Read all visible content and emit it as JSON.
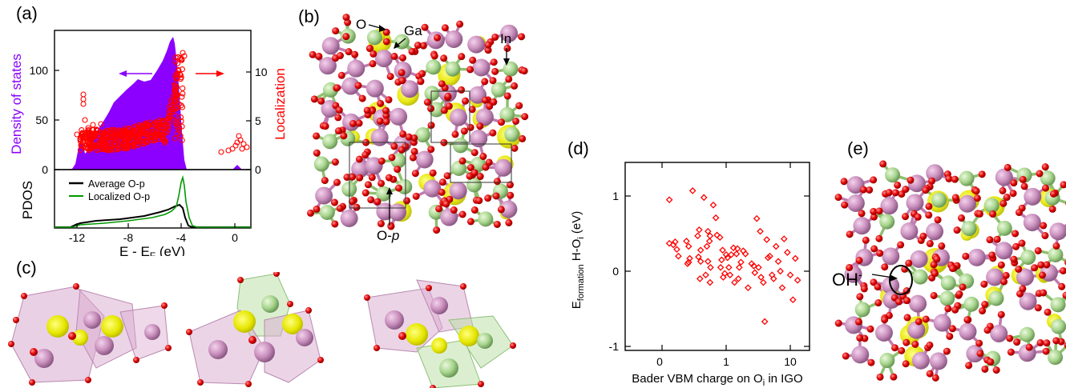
{
  "panel_labels": {
    "a": "(a)",
    "b": "(b)",
    "c": "(c)",
    "d": "(d)",
    "e": "(e)"
  },
  "panel_a": {
    "dos_ylabel": "Density of states",
    "loc_ylabel": "Localization",
    "pdos_ylabel": "PDOS",
    "xlabel_main": "E - E",
    "xlabel_sub": "F",
    "xlabel_unit": " (eV)",
    "xticks": [
      "-12",
      "-8",
      "-4",
      "0"
    ],
    "dos_yticks": [
      "0",
      "50",
      "100"
    ],
    "loc_yticks": [
      "0",
      "5",
      "10"
    ],
    "legend": [
      "Average O-p",
      "Localized O-p"
    ],
    "colors": {
      "dos": "#8b00ff",
      "loc": "#ff0000",
      "avg": "#000000",
      "loc_op": "#009900"
    }
  },
  "panel_b": {
    "labels": {
      "o": "O",
      "ga": "Ga",
      "in": "In",
      "op": "O-p"
    }
  },
  "panel_e": {
    "label": "OH",
    "label_sup": "-"
  },
  "chart_data": {
    "type": "scatter",
    "title": "",
    "xlabel": "Bader VBM charge on O",
    "xlabel_sub": "i",
    "xlabel_tail": " in IGO",
    "ylabel": "E",
    "ylabel_sub": "formation",
    "ylabel_tail": " H-O",
    "ylabel_tail_sub": "i",
    "ylabel_unit": " (eV)",
    "xscale": "log",
    "xticks": [
      "0",
      "1",
      "10"
    ],
    "yticks": [
      "-1",
      "0",
      "1"
    ],
    "ylim": [
      -1,
      1.5
    ],
    "color": "#ff0000",
    "points": [
      [
        0.13,
        0.95
      ],
      [
        0.13,
        0.37
      ],
      [
        0.15,
        0.35
      ],
      [
        0.16,
        0.39
      ],
      [
        0.17,
        0.29
      ],
      [
        0.18,
        0.2
      ],
      [
        0.24,
        0.4
      ],
      [
        0.26,
        0.33
      ],
      [
        0.3,
        1.07
      ],
      [
        0.27,
        0.17
      ],
      [
        0.25,
        0.1
      ],
      [
        0.26,
        0.12
      ],
      [
        0.36,
        0.47
      ],
      [
        0.38,
        0.55
      ],
      [
        0.4,
        0.28
      ],
      [
        0.37,
        0.19
      ],
      [
        0.4,
        0.13
      ],
      [
        0.39,
        -0.1
      ],
      [
        0.45,
        0.98
      ],
      [
        0.52,
        0.53
      ],
      [
        0.56,
        0.47
      ],
      [
        0.55,
        0.4
      ],
      [
        0.5,
        0.33
      ],
      [
        0.52,
        0.13
      ],
      [
        0.57,
        0.05
      ],
      [
        0.48,
        -0.05
      ],
      [
        0.56,
        -0.15
      ],
      [
        0.63,
        0.88
      ],
      [
        0.69,
        0.71
      ],
      [
        0.72,
        0.48
      ],
      [
        0.8,
        0.45
      ],
      [
        0.88,
        0.28
      ],
      [
        0.85,
        0.15
      ],
      [
        0.82,
        0.05
      ],
      [
        0.95,
        -0.03
      ],
      [
        0.9,
        -0.08
      ],
      [
        1.0,
        0.22
      ],
      [
        1.05,
        0.18
      ],
      [
        1.1,
        0.05
      ],
      [
        1.15,
        -0.05
      ],
      [
        1.2,
        0.22
      ],
      [
        1.3,
        0.31
      ],
      [
        1.35,
        -0.15
      ],
      [
        1.45,
        0.23
      ],
      [
        1.5,
        0.3
      ],
      [
        1.6,
        0.05
      ],
      [
        1.55,
        -0.1
      ],
      [
        1.85,
        0.27
      ],
      [
        2.0,
        0.23
      ],
      [
        2.2,
        -0.22
      ],
      [
        2.5,
        0.1
      ],
      [
        2.7,
        0.07
      ],
      [
        3.0,
        0.7
      ],
      [
        3.4,
        0.53
      ],
      [
        3.5,
        -0.08
      ],
      [
        3.8,
        -0.15
      ],
      [
        4.0,
        -0.67
      ],
      [
        4.3,
        0.42
      ],
      [
        4.5,
        0.18
      ],
      [
        4.8,
        0.2
      ],
      [
        5.2,
        -0.05
      ],
      [
        5.5,
        -0.1
      ],
      [
        6.0,
        0.33
      ],
      [
        6.5,
        0.13
      ],
      [
        7.0,
        0.0
      ],
      [
        7.5,
        -0.22
      ],
      [
        8.0,
        0.43
      ],
      [
        9.0,
        0.25
      ],
      [
        10.0,
        -0.05
      ],
      [
        11.0,
        -0.38
      ],
      [
        12.0,
        0.17
      ],
      [
        13.0,
        -0.12
      ],
      [
        3.2,
        0.05
      ],
      [
        2.8,
        -0.02
      ],
      [
        1.7,
        0.12
      ]
    ]
  }
}
